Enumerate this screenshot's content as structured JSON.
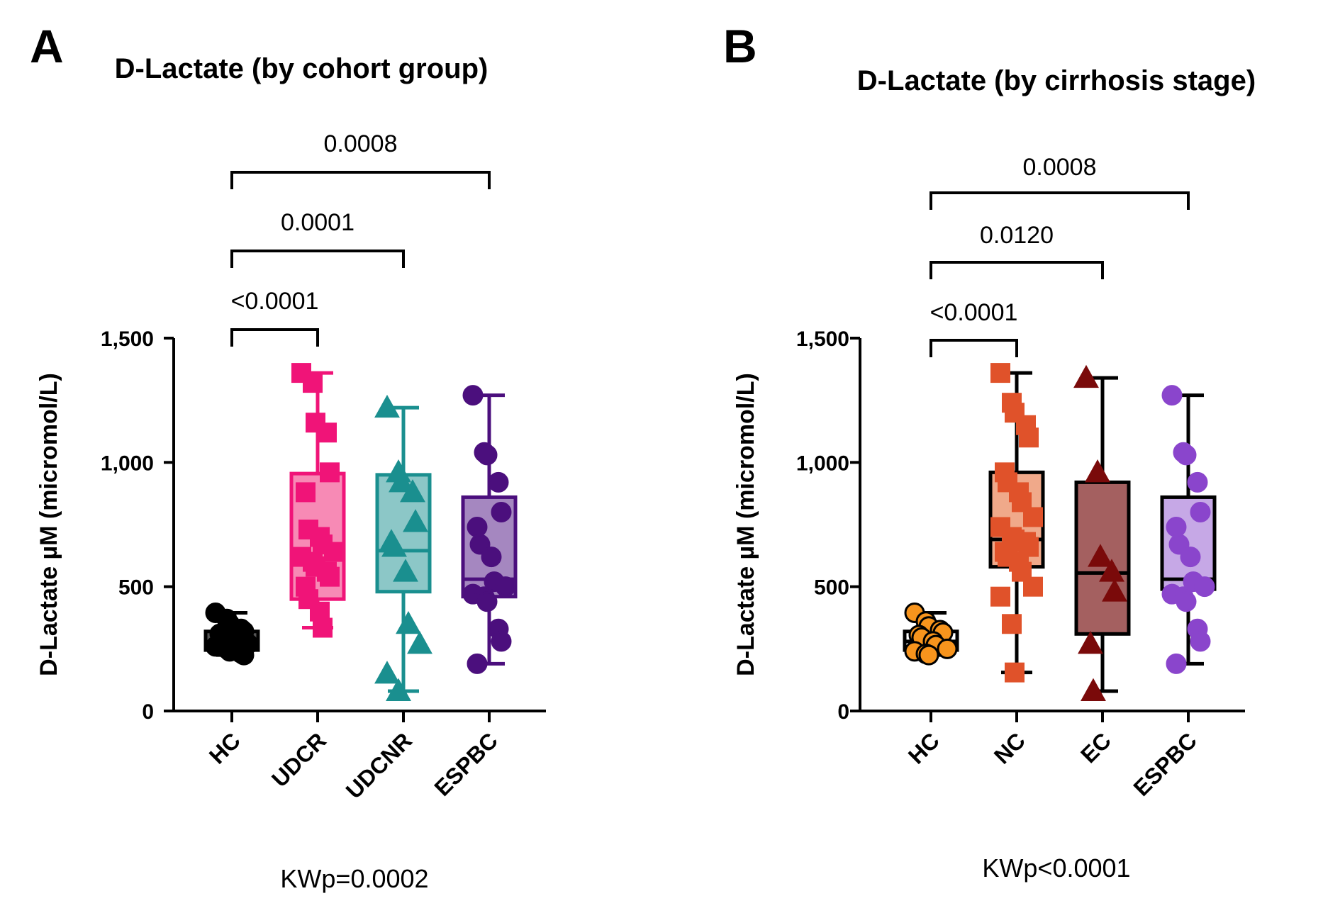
{
  "chart_data": [
    {
      "type": "box",
      "panel_label": "A",
      "title": "D-Lactate (by cohort group)",
      "ylabel": "D-Lactate µM (micromol/L)",
      "ylim": [
        0,
        1500
      ],
      "yticks": [
        0,
        500,
        1000,
        1500
      ],
      "ytick_labels": [
        "0",
        "500",
        "1,000",
        "1,500"
      ],
      "categories": [
        "HC",
        "UDCR",
        "UDCNR",
        "ESPBC"
      ],
      "series": [
        {
          "category": "HC",
          "color": "#000000",
          "fill": "#555555",
          "marker": "circle",
          "marker_edge": "#000000",
          "min": 225,
          "q1": 245,
          "median": 275,
          "q3": 320,
          "max": 395,
          "points": [
            395,
            370,
            350,
            330,
            320,
            310,
            300,
            290,
            280,
            270,
            260,
            250,
            240,
            232,
            225
          ]
        },
        {
          "category": "UDCR",
          "color": "#f01478",
          "fill": "#f78ab5",
          "marker": "square",
          "marker_edge": "#f01478",
          "min": 335,
          "q1": 450,
          "median": 615,
          "q3": 955,
          "max": 1360,
          "points": [
            1360,
            1320,
            1160,
            1120,
            960,
            880,
            730,
            700,
            670,
            640,
            620,
            600,
            580,
            560,
            540,
            500,
            450,
            400,
            335
          ]
        },
        {
          "category": "UDCNR",
          "color": "#1a8f8f",
          "fill": "#8cc7c7",
          "marker": "triangle",
          "marker_edge": "#1a8f8f",
          "min": 80,
          "q1": 480,
          "median": 645,
          "q3": 950,
          "max": 1220,
          "points": [
            1220,
            960,
            920,
            880,
            760,
            680,
            660,
            560,
            350,
            270,
            150,
            80
          ]
        },
        {
          "category": "ESPBC",
          "color": "#4b0f7d",
          "fill": "#a587c0",
          "marker": "circle",
          "marker_edge": "#4b0f7d",
          "min": 190,
          "q1": 460,
          "median": 530,
          "q3": 860,
          "max": 1270,
          "points": [
            1270,
            1040,
            1030,
            920,
            800,
            740,
            670,
            620,
            520,
            500,
            470,
            460,
            440,
            330,
            280,
            190
          ]
        }
      ],
      "comparisons": [
        {
          "group1": "HC",
          "group2": "UDCR",
          "label": "<0.0001"
        },
        {
          "group1": "HC",
          "group2": "UDCNR",
          "label": "0.0001"
        },
        {
          "group1": "HC",
          "group2": "ESPBC",
          "label": "0.0008"
        }
      ],
      "footnote": "KWp=0.0002"
    },
    {
      "type": "box",
      "panel_label": "B",
      "title": "D-Lactate (by cirrhosis stage)",
      "ylabel": "D-Lactate µM (micromol/L)",
      "ylim": [
        0,
        1500
      ],
      "yticks": [
        0,
        500,
        1000,
        1500
      ],
      "ytick_labels": [
        "0",
        "500",
        "1,000",
        "1,500"
      ],
      "categories": [
        "HC",
        "NC",
        "EC",
        "ESPBC"
      ],
      "series": [
        {
          "category": "HC",
          "color": "#000000",
          "fill": "#ffffff",
          "marker": "circle",
          "marker_fill": "#f7941d",
          "marker_edge": "#000000",
          "min": 225,
          "q1": 245,
          "median": 280,
          "q3": 320,
          "max": 395,
          "points": [
            395,
            360,
            340,
            325,
            315,
            305,
            295,
            280,
            265,
            250,
            240,
            230,
            225
          ]
        },
        {
          "category": "NC",
          "color": "#000000",
          "fill": "#f0a98a",
          "marker": "square",
          "marker_fill": "#e0522a",
          "marker_edge": "#e0522a",
          "min": 155,
          "q1": 580,
          "median": 690,
          "q3": 960,
          "max": 1360,
          "points": [
            1360,
            1240,
            1200,
            1150,
            1100,
            960,
            920,
            880,
            840,
            780,
            740,
            700,
            690,
            680,
            660,
            640,
            620,
            600,
            560,
            500,
            460,
            350,
            155
          ]
        },
        {
          "category": "EC",
          "color": "#000000",
          "fill": "#a46060",
          "marker": "triangle",
          "marker_fill": "#7a0a0a",
          "marker_edge": "#7a0a0a",
          "min": 80,
          "q1": 310,
          "median": 555,
          "q3": 920,
          "max": 1340,
          "points": [
            1340,
            960,
            620,
            560,
            480,
            270,
            80
          ]
        },
        {
          "category": "ESPBC",
          "color": "#000000",
          "fill": "#c6a8e6",
          "marker": "circle",
          "marker_fill": "#8a45cc",
          "marker_edge": "#8a45cc",
          "min": 190,
          "q1": 490,
          "median": 530,
          "q3": 860,
          "max": 1270,
          "points": [
            1270,
            1040,
            1030,
            920,
            800,
            740,
            670,
            620,
            520,
            500,
            470,
            460,
            440,
            330,
            280,
            190
          ]
        }
      ],
      "comparisons": [
        {
          "group1": "HC",
          "group2": "NC",
          "label": "<0.0001"
        },
        {
          "group1": "HC",
          "group2": "EC",
          "label": "0.0120"
        },
        {
          "group1": "HC",
          "group2": "ESPBC",
          "label": "0.0008"
        }
      ],
      "footnote": "KWp<0.0001"
    }
  ]
}
